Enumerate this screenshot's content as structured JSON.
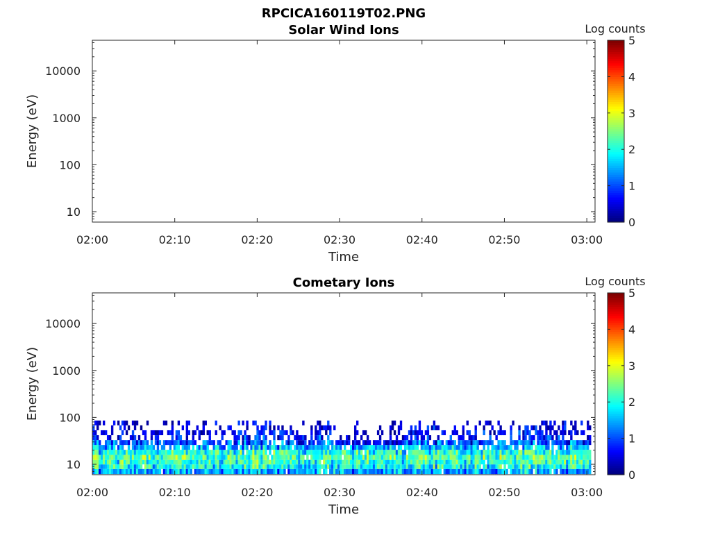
{
  "figure": {
    "title": "RPCICA160119T02.PNG"
  },
  "chart_data": [
    {
      "type": "heatmap",
      "title": "Solar Wind Ions",
      "xlabel": "Time",
      "ylabel": "Energy (eV)",
      "y_scale": "log",
      "x_tick_labels": [
        "02:00",
        "02:10",
        "02:20",
        "02:30",
        "02:40",
        "02:50",
        "03:00"
      ],
      "y_tick_labels": [
        "10",
        "100",
        "1000",
        "10000"
      ],
      "xlim": [
        "02:00",
        "03:01"
      ],
      "ylim": [
        6,
        45000
      ],
      "colorbar": {
        "label": "Log counts",
        "ticks": [
          "0",
          "1",
          "2",
          "3",
          "4",
          "5"
        ],
        "range": [
          0,
          5
        ],
        "colormap": "jet"
      },
      "data_summary": "no counts detected"
    },
    {
      "type": "heatmap",
      "title": "Cometary Ions",
      "xlabel": "Time",
      "ylabel": "Energy (eV)",
      "y_scale": "log",
      "x_tick_labels": [
        "02:00",
        "02:10",
        "02:20",
        "02:30",
        "02:40",
        "02:50",
        "03:00"
      ],
      "y_tick_labels": [
        "10",
        "100",
        "1000",
        "10000"
      ],
      "xlim": [
        "02:00",
        "03:01"
      ],
      "ylim": [
        6,
        45000
      ],
      "colorbar": {
        "label": "Log counts",
        "ticks": [
          "0",
          "1",
          "2",
          "3",
          "4",
          "5"
        ],
        "range": [
          0,
          5
        ],
        "colormap": "jet"
      },
      "energy_bins_eV": [
        7,
        9,
        11,
        14,
        18,
        23,
        29,
        37,
        47,
        60,
        76
      ],
      "profile_log_counts": {
        "7": 1.5,
        "9": 1.9,
        "11": 2.1,
        "14": 2.3,
        "18": 2.0,
        "23": 1.5,
        "29": 1.0,
        "37": 0.6,
        "47": 0.4,
        "60": 0.3,
        "76": 0.2
      }
    }
  ]
}
